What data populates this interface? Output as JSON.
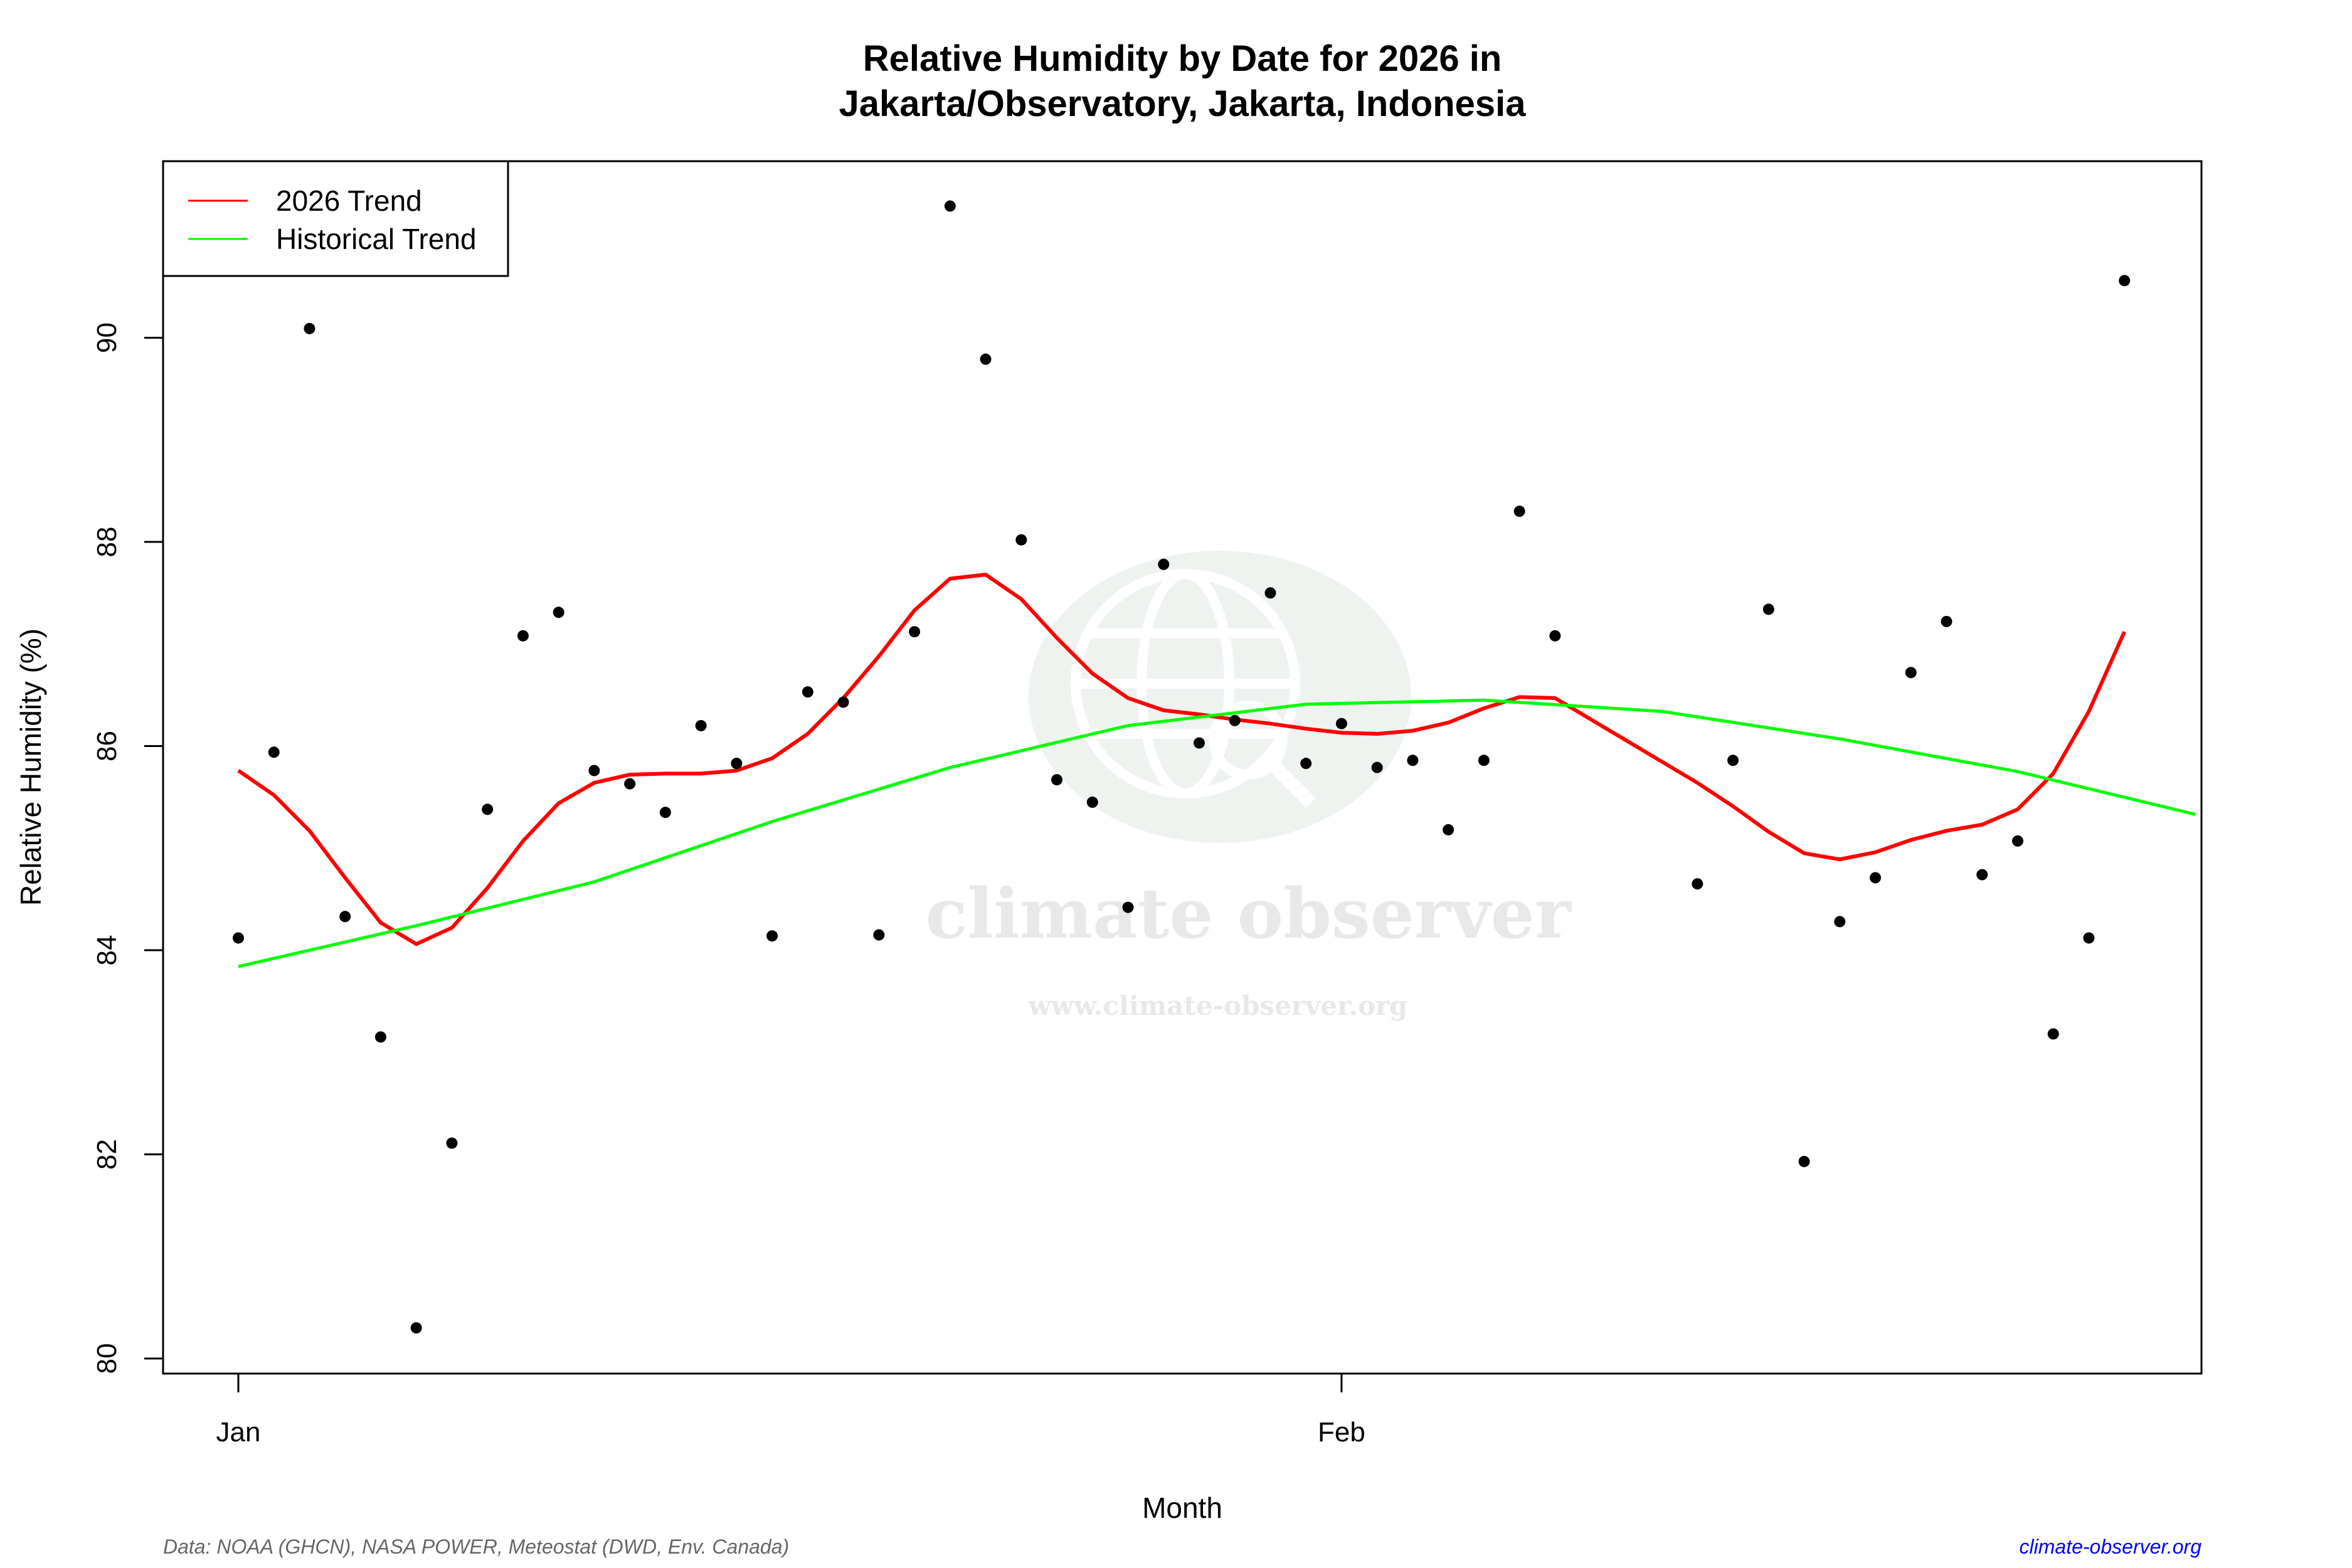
{
  "chart_data": {
    "type": "scatter",
    "title": "Relative Humidity by Date for 2026 in",
    "subtitle": "Jakarta/Observatory, Jakarta, Indonesia",
    "xlabel": "Month",
    "ylabel": "Relative Humidity (%)",
    "x_ticks": [
      {
        "date": "2026-01-01",
        "label": "Jan"
      },
      {
        "date": "2026-02-01",
        "label": "Feb"
      }
    ],
    "y_ticks": [
      80,
      82,
      84,
      86,
      88,
      90
    ],
    "ylim": [
      79.7,
      91.6
    ],
    "xlim": [
      "2025-12-29",
      "2026-02-25"
    ],
    "grid": false,
    "legend_position": "top-left",
    "points": {
      "color": "#000000",
      "x": [
        "2026-01-01",
        "2026-01-02",
        "2026-01-03",
        "2026-01-04",
        "2026-01-05",
        "2026-01-06",
        "2026-01-07",
        "2026-01-08",
        "2026-01-09",
        "2026-01-10",
        "2026-01-11",
        "2026-01-12",
        "2026-01-13",
        "2026-01-14",
        "2026-01-15",
        "2026-01-16",
        "2026-01-17",
        "2026-01-18",
        "2026-01-19",
        "2026-01-20",
        "2026-01-21",
        "2026-01-22",
        "2026-01-23",
        "2026-01-24",
        "2026-01-25",
        "2026-01-26",
        "2026-01-27",
        "2026-01-28",
        "2026-01-29",
        "2026-01-30",
        "2026-01-31",
        "2026-02-01",
        "2026-02-02",
        "2026-02-03",
        "2026-02-04",
        "2026-02-05",
        "2026-02-06",
        "2026-02-07",
        "2026-02-11",
        "2026-02-12",
        "2026-02-13",
        "2026-02-14",
        "2026-02-15",
        "2026-02-16",
        "2026-02-17",
        "2026-02-18",
        "2026-02-19",
        "2026-02-20",
        "2026-02-21",
        "2026-02-22",
        "2026-02-23"
      ],
      "y": [
        84.12,
        85.94,
        90.09,
        84.33,
        83.15,
        80.3,
        82.11,
        85.38,
        87.08,
        87.31,
        85.76,
        85.63,
        85.35,
        86.2,
        85.83,
        84.14,
        86.53,
        86.43,
        84.15,
        87.12,
        91.29,
        89.79,
        88.02,
        85.67,
        85.45,
        84.42,
        87.78,
        86.03,
        86.25,
        87.5,
        85.83,
        86.22,
        85.79,
        85.86,
        85.18,
        85.86,
        88.3,
        87.08,
        84.65,
        85.86,
        87.34,
        81.93,
        84.28,
        84.71,
        86.72,
        87.22,
        84.74,
        85.07,
        83.18,
        84.12,
        90.56
      ]
    },
    "series": [
      {
        "name": "2026 Trend",
        "color": "#ff0000",
        "x": [
          "2026-01-01",
          "2026-01-02",
          "2026-01-03",
          "2026-01-04",
          "2026-01-05",
          "2026-01-06",
          "2026-01-07",
          "2026-01-08",
          "2026-01-09",
          "2026-01-10",
          "2026-01-11",
          "2026-01-12",
          "2026-01-13",
          "2026-01-14",
          "2026-01-15",
          "2026-01-16",
          "2026-01-17",
          "2026-01-18",
          "2026-01-19",
          "2026-01-20",
          "2026-01-21",
          "2026-01-22",
          "2026-01-23",
          "2026-01-24",
          "2026-01-25",
          "2026-01-26",
          "2026-01-27",
          "2026-01-28",
          "2026-01-29",
          "2026-01-30",
          "2026-01-31",
          "2026-02-01",
          "2026-02-02",
          "2026-02-03",
          "2026-02-04",
          "2026-02-05",
          "2026-02-06",
          "2026-02-07",
          "2026-02-11",
          "2026-02-12",
          "2026-02-13",
          "2026-02-14",
          "2026-02-15",
          "2026-02-16",
          "2026-02-17",
          "2026-02-18",
          "2026-02-19",
          "2026-02-20",
          "2026-02-21",
          "2026-02-22",
          "2026-02-23"
        ],
        "y": [
          85.76,
          85.52,
          85.17,
          84.71,
          84.27,
          84.06,
          84.22,
          84.61,
          85.07,
          85.44,
          85.64,
          85.72,
          85.73,
          85.73,
          85.76,
          85.88,
          86.12,
          86.47,
          86.88,
          87.33,
          87.64,
          87.68,
          87.44,
          87.06,
          86.71,
          86.47,
          86.35,
          86.31,
          86.26,
          86.22,
          86.17,
          86.13,
          86.12,
          86.15,
          86.23,
          86.37,
          86.48,
          86.47,
          85.64,
          85.41,
          85.16,
          84.95,
          84.89,
          84.96,
          85.08,
          85.17,
          85.23,
          85.38,
          85.73,
          86.34,
          87.12
        ]
      },
      {
        "name": "Historical Trend",
        "color": "#00ff00",
        "x": [
          "2026-01-01",
          "2026-01-06",
          "2026-01-11",
          "2026-01-16",
          "2026-01-21",
          "2026-01-26",
          "2026-01-31",
          "2026-02-05",
          "2026-02-10",
          "2026-02-15",
          "2026-02-20",
          "2026-02-25"
        ],
        "y": [
          83.84,
          84.24,
          84.67,
          85.26,
          85.79,
          86.2,
          86.41,
          86.45,
          86.34,
          86.07,
          85.75,
          85.33
        ]
      }
    ]
  },
  "watermark": {
    "name": "climate observer",
    "url": "www.climate-observer.org"
  },
  "footer": {
    "source": "Data: NOAA (GHCN), NASA POWER, Meteostat (DWD, Env. Canada)",
    "site": "climate-observer.org",
    "site_color": "#0000ff"
  }
}
